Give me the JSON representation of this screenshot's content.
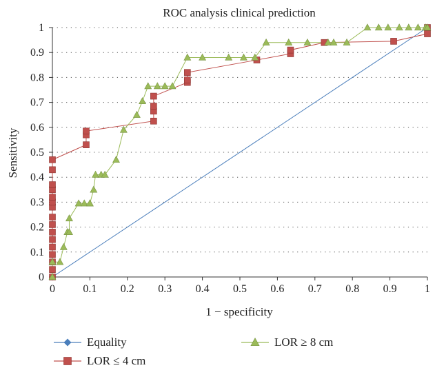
{
  "chart_data": {
    "type": "line",
    "title": "ROC analysis clinical prediction",
    "xlabel": "1 − specificity",
    "ylabel": "Sensitivity",
    "xlim": [
      0,
      1
    ],
    "ylim": [
      0,
      1
    ],
    "grid": "horizontal dotted",
    "x_ticks": [
      "0",
      "0.1",
      "0.2",
      "0.3",
      "0.4",
      "0.5",
      "0.6",
      "0.7",
      "0.8",
      "0.9",
      "1"
    ],
    "y_ticks": [
      "0",
      "0.1",
      "0.2",
      "0.3",
      "0.4",
      "0.5",
      "0.6",
      "0.7",
      "0.8",
      "0.9",
      "1"
    ],
    "legend_position": "bottom",
    "series": [
      {
        "name": "Equality",
        "color": "#4a7ebb",
        "marker": "diamond",
        "points": [
          [
            0,
            0
          ],
          [
            1,
            1
          ]
        ]
      },
      {
        "name": "LOR ≤ 4 cm",
        "color": "#c0504d",
        "marker": "square",
        "points": [
          [
            0,
            0
          ],
          [
            0,
            0.03
          ],
          [
            0,
            0.06
          ],
          [
            0,
            0.09
          ],
          [
            0,
            0.12
          ],
          [
            0,
            0.15
          ],
          [
            0,
            0.18
          ],
          [
            0,
            0.21
          ],
          [
            0,
            0.24
          ],
          [
            0,
            0.28
          ],
          [
            0,
            0.3
          ],
          [
            0,
            0.32
          ],
          [
            0,
            0.35
          ],
          [
            0,
            0.37
          ],
          [
            0,
            0.43
          ],
          [
            0,
            0.47
          ],
          [
            0.09,
            0.53
          ],
          [
            0.09,
            0.57
          ],
          [
            0.09,
            0.585
          ],
          [
            0.27,
            0.625
          ],
          [
            0.27,
            0.665
          ],
          [
            0.27,
            0.685
          ],
          [
            0.27,
            0.725
          ],
          [
            0.36,
            0.78
          ],
          [
            0.36,
            0.79
          ],
          [
            0.36,
            0.82
          ],
          [
            0.545,
            0.87
          ],
          [
            0.635,
            0.895
          ],
          [
            0.635,
            0.91
          ],
          [
            0.725,
            0.94
          ],
          [
            0.91,
            0.945
          ],
          [
            1,
            0.975
          ],
          [
            1,
            1
          ]
        ]
      },
      {
        "name": "LOR ≥ 8 cm",
        "color": "#9bbb59",
        "marker": "triangle",
        "points": [
          [
            0,
            0
          ],
          [
            0,
            0.06
          ],
          [
            0.02,
            0.06
          ],
          [
            0.03,
            0.12
          ],
          [
            0.04,
            0.18
          ],
          [
            0.045,
            0.18
          ],
          [
            0.045,
            0.235
          ],
          [
            0.07,
            0.295
          ],
          [
            0.085,
            0.295
          ],
          [
            0.1,
            0.295
          ],
          [
            0.1,
            0.295
          ],
          [
            0.11,
            0.35
          ],
          [
            0.115,
            0.41
          ],
          [
            0.13,
            0.41
          ],
          [
            0.14,
            0.41
          ],
          [
            0.17,
            0.47
          ],
          [
            0.19,
            0.59
          ],
          [
            0.225,
            0.65
          ],
          [
            0.24,
            0.705
          ],
          [
            0.255,
            0.765
          ],
          [
            0.28,
            0.765
          ],
          [
            0.3,
            0.765
          ],
          [
            0.32,
            0.765
          ],
          [
            0.36,
            0.88
          ],
          [
            0.4,
            0.88
          ],
          [
            0.47,
            0.88
          ],
          [
            0.51,
            0.88
          ],
          [
            0.54,
            0.88
          ],
          [
            0.57,
            0.94
          ],
          [
            0.63,
            0.94
          ],
          [
            0.68,
            0.94
          ],
          [
            0.735,
            0.94
          ],
          [
            0.75,
            0.94
          ],
          [
            0.785,
            0.94
          ],
          [
            0.84,
            1
          ],
          [
            0.87,
            1
          ],
          [
            0.895,
            1
          ],
          [
            0.925,
            1
          ],
          [
            0.95,
            1
          ],
          [
            0.975,
            1
          ],
          [
            0.995,
            1
          ],
          [
            1,
            1
          ]
        ]
      }
    ]
  }
}
